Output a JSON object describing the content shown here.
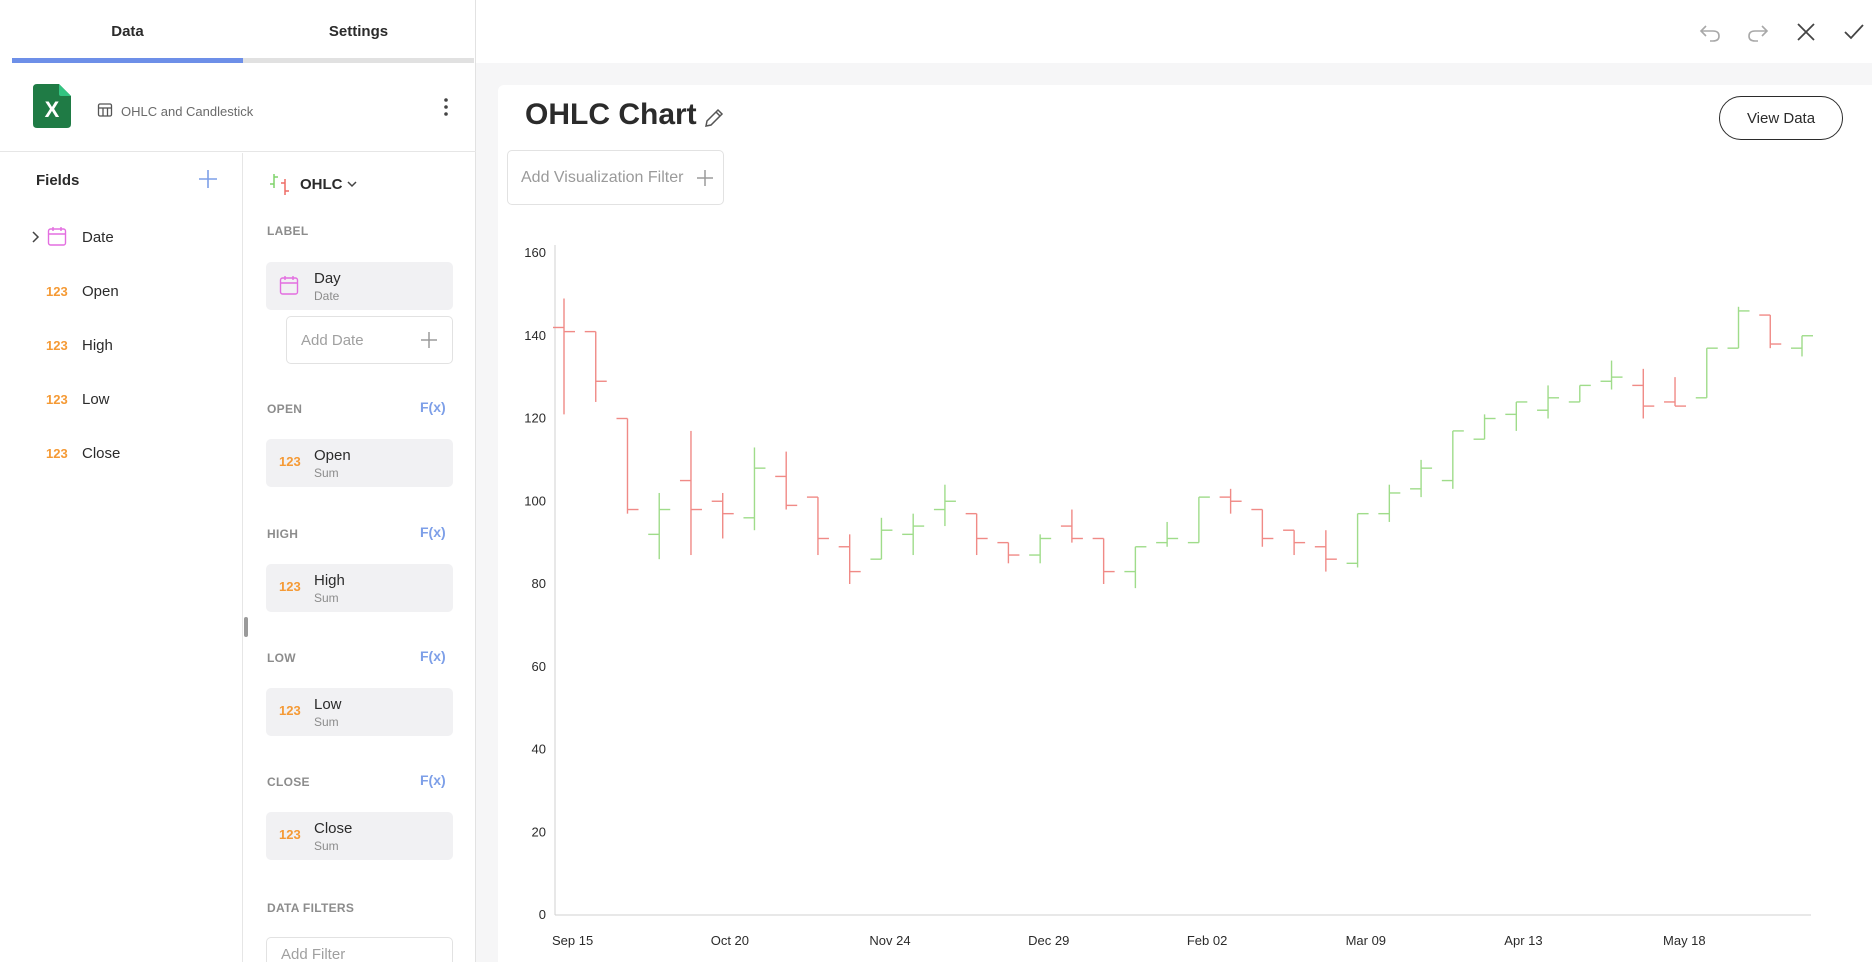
{
  "tabs": [
    {
      "label": "Data",
      "active": true
    },
    {
      "label": "Settings",
      "active": false
    }
  ],
  "source": {
    "icon": "excel-icon",
    "label": "OHLC and Candlestick"
  },
  "fields": {
    "title": "Fields",
    "items": [
      {
        "name": "Date",
        "type": "date",
        "expandable": true
      },
      {
        "name": "Open",
        "type": "number",
        "type_label": "123"
      },
      {
        "name": "High",
        "type": "number",
        "type_label": "123"
      },
      {
        "name": "Low",
        "type": "number",
        "type_label": "123"
      },
      {
        "name": "Close",
        "type": "number",
        "type_label": "123"
      }
    ]
  },
  "config": {
    "viz_type": "OHLC",
    "sections": {
      "label": {
        "title": "LABEL",
        "pill_title": "Day",
        "pill_sub": "Date",
        "add_placeholder": "Add Date"
      },
      "open": {
        "title": "OPEN",
        "fx": "F(x)",
        "pill_icon": "123",
        "pill_title": "Open",
        "pill_sub": "Sum"
      },
      "high": {
        "title": "HIGH",
        "fx": "F(x)",
        "pill_icon": "123",
        "pill_title": "High",
        "pill_sub": "Sum"
      },
      "low": {
        "title": "LOW",
        "fx": "F(x)",
        "pill_icon": "123",
        "pill_title": "Low",
        "pill_sub": "Sum"
      },
      "close": {
        "title": "CLOSE",
        "fx": "F(x)",
        "pill_icon": "123",
        "pill_title": "Close",
        "pill_sub": "Sum"
      },
      "data_filters": {
        "title": "DATA FILTERS",
        "add_placeholder": "Add Filter"
      }
    }
  },
  "card": {
    "title": "OHLC Chart",
    "view_data_label": "View Data",
    "filter_placeholder": "Add Visualization Filter"
  },
  "colors": {
    "up": "#9fdc8a",
    "down": "#f08a86",
    "accent": "#6d8fe8",
    "number_type": "#f59a35",
    "date_type": "#e36ee0"
  },
  "chart_data": {
    "type": "ohlc",
    "title": "",
    "xlabel": "",
    "ylabel": "",
    "ylim": [
      0,
      160
    ],
    "yticks": [
      0,
      20,
      40,
      60,
      80,
      100,
      120,
      140,
      160
    ],
    "xtick_labels": [
      "Sep 15",
      "Oct 20",
      "Nov 24",
      "Dec 29",
      "Feb 02",
      "Mar 09",
      "Apr 13",
      "May 18"
    ],
    "grid": false,
    "series": [
      {
        "unit": "week",
        "start": "Sep 15",
        "points": [
          {
            "o": 142,
            "h": 149,
            "l": 121,
            "c": 141
          },
          {
            "o": 141,
            "h": 141,
            "l": 124,
            "c": 129
          },
          {
            "o": 120,
            "h": 120,
            "l": 97,
            "c": 98
          },
          {
            "o": 92,
            "h": 102,
            "l": 86,
            "c": 98
          },
          {
            "o": 105,
            "h": 117,
            "l": 87,
            "c": 98
          },
          {
            "o": 100,
            "h": 102,
            "l": 91,
            "c": 97
          },
          {
            "o": 96,
            "h": 113,
            "l": 93,
            "c": 108
          },
          {
            "o": 106,
            "h": 112,
            "l": 98,
            "c": 99
          },
          {
            "o": 101,
            "h": 101,
            "l": 87,
            "c": 91
          },
          {
            "o": 89,
            "h": 92,
            "l": 80,
            "c": 83
          },
          {
            "o": 86,
            "h": 96,
            "l": 86,
            "c": 93
          },
          {
            "o": 92,
            "h": 97,
            "l": 87,
            "c": 94
          },
          {
            "o": 98,
            "h": 104,
            "l": 94,
            "c": 100
          },
          {
            "o": 97,
            "h": 97,
            "l": 87,
            "c": 91
          },
          {
            "o": 90,
            "h": 90,
            "l": 85,
            "c": 87
          },
          {
            "o": 87,
            "h": 92,
            "l": 85,
            "c": 91
          },
          {
            "o": 94,
            "h": 98,
            "l": 90,
            "c": 91
          },
          {
            "o": 91,
            "h": 91,
            "l": 80,
            "c": 83
          },
          {
            "o": 83,
            "h": 89,
            "l": 79,
            "c": 89
          },
          {
            "o": 90,
            "h": 95,
            "l": 89,
            "c": 91
          },
          {
            "o": 90,
            "h": 101,
            "l": 90,
            "c": 101
          },
          {
            "o": 101,
            "h": 103,
            "l": 97,
            "c": 100
          },
          {
            "o": 98,
            "h": 98,
            "l": 89,
            "c": 91
          },
          {
            "o": 93,
            "h": 93,
            "l": 87,
            "c": 90
          },
          {
            "o": 89,
            "h": 93,
            "l": 83,
            "c": 86
          },
          {
            "o": 85,
            "h": 97,
            "l": 84,
            "c": 97
          },
          {
            "o": 97,
            "h": 104,
            "l": 95,
            "c": 102
          },
          {
            "o": 103,
            "h": 110,
            "l": 101,
            "c": 108
          },
          {
            "o": 105,
            "h": 117,
            "l": 103,
            "c": 117
          },
          {
            "o": 115,
            "h": 121,
            "l": 115,
            "c": 120
          },
          {
            "o": 121,
            "h": 124,
            "l": 117,
            "c": 124
          },
          {
            "o": 122,
            "h": 128,
            "l": 120,
            "c": 125
          },
          {
            "o": 124,
            "h": 128,
            "l": 124,
            "c": 128
          },
          {
            "o": 129,
            "h": 134,
            "l": 127,
            "c": 130
          },
          {
            "o": 128,
            "h": 132,
            "l": 120,
            "c": 123
          },
          {
            "o": 124,
            "h": 130,
            "l": 123,
            "c": 123
          },
          {
            "o": 125,
            "h": 137,
            "l": 125,
            "c": 137
          },
          {
            "o": 137,
            "h": 147,
            "l": 137,
            "c": 146
          },
          {
            "o": 145,
            "h": 145,
            "l": 137,
            "c": 138
          },
          {
            "o": 137,
            "h": 140,
            "l": 135,
            "c": 140
          }
        ]
      }
    ]
  }
}
